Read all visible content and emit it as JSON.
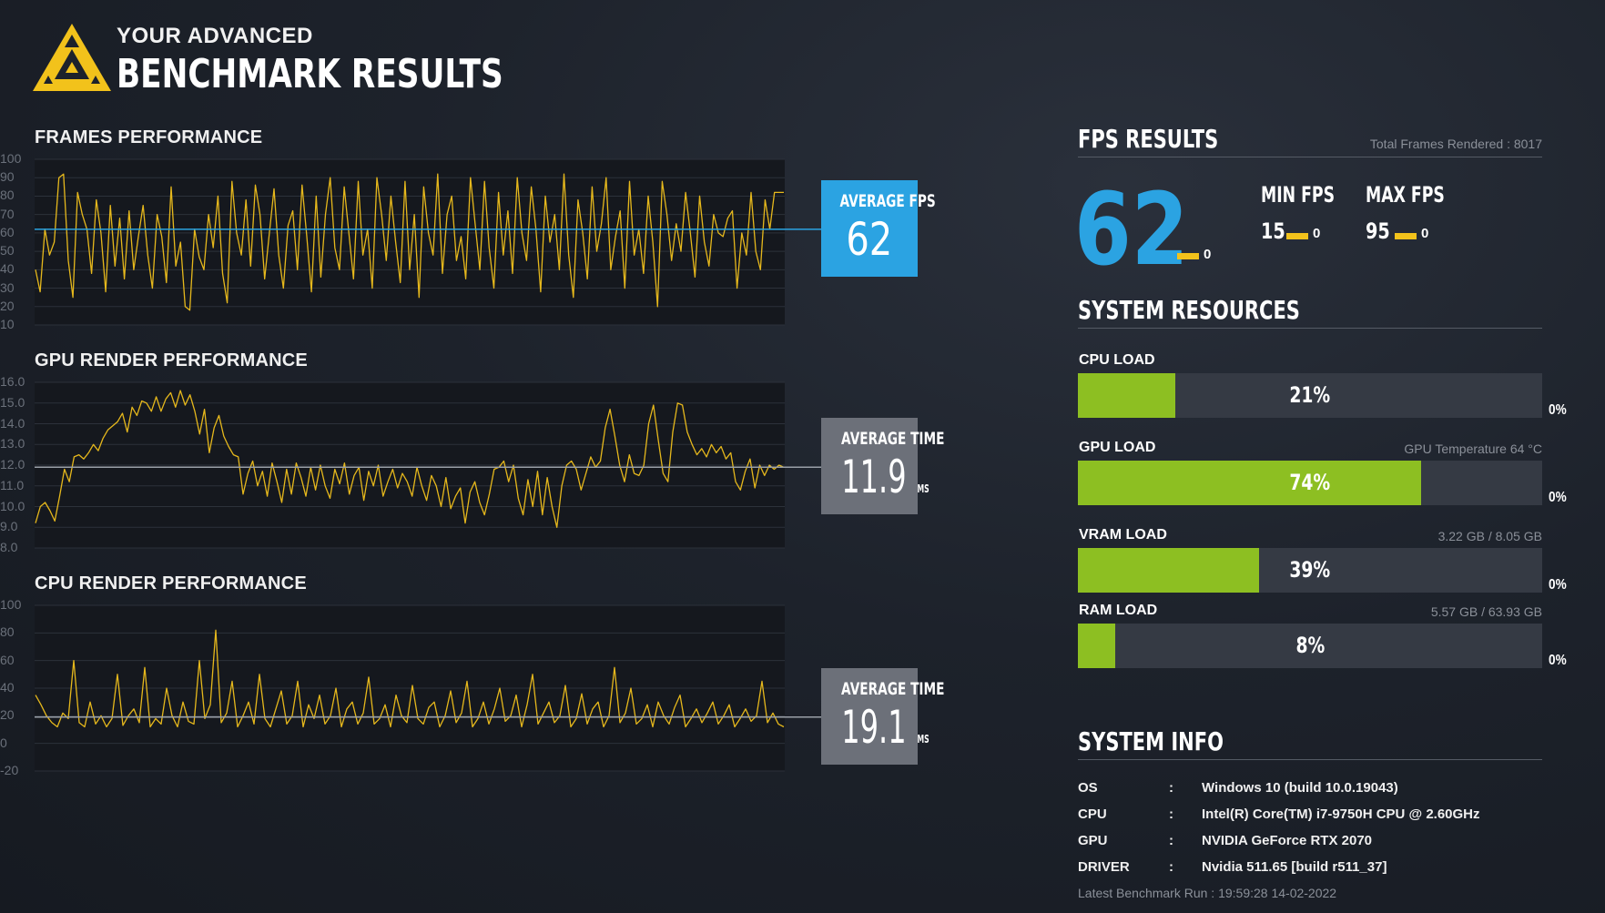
{
  "header": {
    "subtitle": "YOUR ADVANCED",
    "title": "BENCHMARK RESULTS",
    "logo_icon": "triangle-logo-icon",
    "accent_color": "#f2c21b"
  },
  "charts": {
    "frames": {
      "title": "FRAMES PERFORMANCE",
      "average_label": "AVERAGE FPS",
      "average_value": "62",
      "average_unit": "",
      "box_color": "#2ba3e2"
    },
    "gpu": {
      "title": "GPU RENDER PERFORMANCE",
      "average_label": "AVERAGE TIME",
      "average_value": "11.9",
      "average_unit": "MS",
      "box_color": "#6c7079"
    },
    "cpu": {
      "title": "CPU RENDER PERFORMANCE",
      "average_label": "AVERAGE TIME",
      "average_value": "19.1",
      "average_unit": "MS",
      "box_color": "#6c7079"
    }
  },
  "chart_data": [
    {
      "type": "line",
      "name": "frames",
      "title": "FRAMES PERFORMANCE",
      "y_ticks": [
        "100",
        "90",
        "80",
        "70",
        "60",
        "50",
        "40",
        "30",
        "20",
        "10"
      ],
      "ylim": [
        10,
        100
      ],
      "average": 62,
      "series_color": "#e6b81c",
      "average_line_color": "#2ba3e2",
      "values": [
        40,
        28,
        62,
        48,
        55,
        90,
        92,
        45,
        25,
        82,
        70,
        62,
        38,
        78,
        60,
        28,
        75,
        42,
        68,
        35,
        72,
        40,
        58,
        75,
        48,
        30,
        70,
        58,
        33,
        85,
        42,
        55,
        20,
        18,
        62,
        47,
        40,
        70,
        52,
        80,
        38,
        22,
        88,
        60,
        48,
        78,
        42,
        86,
        70,
        35,
        60,
        84,
        48,
        30,
        64,
        72,
        40,
        86,
        58,
        28,
        80,
        36,
        70,
        90,
        52,
        40,
        85,
        60,
        35,
        88,
        48,
        62,
        30,
        90,
        70,
        45,
        80,
        55,
        33,
        88,
        40,
        70,
        25,
        85,
        60,
        48,
        92,
        38,
        70,
        80,
        45,
        58,
        35,
        90,
        65,
        40,
        88,
        52,
        30,
        82,
        48,
        72,
        38,
        90,
        60,
        45,
        85,
        62,
        28,
        80,
        55,
        70,
        40,
        92,
        48,
        25,
        78,
        60,
        35,
        85,
        50,
        65,
        90,
        40,
        58,
        72,
        30,
        88,
        48,
        62,
        38,
        80,
        55,
        20,
        88,
        70,
        45,
        65,
        50,
        82,
        60,
        36,
        80,
        55,
        42,
        70,
        60,
        58,
        68,
        72,
        30,
        60,
        48,
        82,
        50,
        40,
        78,
        62,
        82,
        82,
        82
      ],
      "sample_count": 161
    },
    {
      "type": "line",
      "name": "gpu",
      "title": "GPU RENDER PERFORMANCE",
      "y_ticks": [
        "16.0",
        "15.0",
        "14.0",
        "13.0",
        "12.0",
        "11.0",
        "10.0",
        "9.0",
        "8.0"
      ],
      "ylim": [
        8,
        16
      ],
      "average": 11.9,
      "series_color": "#e6b81c",
      "average_line_color": "#9aa0a8",
      "values": [
        9.2,
        10.0,
        10.2,
        9.8,
        9.3,
        10.5,
        11.8,
        11.2,
        12.4,
        12.5,
        12.3,
        12.6,
        13.0,
        12.7,
        13.3,
        13.7,
        13.9,
        14.1,
        14.5,
        13.6,
        14.8,
        14.4,
        15.1,
        15.0,
        14.6,
        15.3,
        14.6,
        15.2,
        15.5,
        14.8,
        15.6,
        14.9,
        15.4,
        14.6,
        13.5,
        14.7,
        12.6,
        13.8,
        14.4,
        13.4,
        12.9,
        12.5,
        12.4,
        10.6,
        11.6,
        12.2,
        11.0,
        11.7,
        10.5,
        12.1,
        11.2,
        10.2,
        11.8,
        10.6,
        12.1,
        11.4,
        10.5,
        11.9,
        10.8,
        12.0,
        11.0,
        10.4,
        11.8,
        11.1,
        12.1,
        10.6,
        11.5,
        11.9,
        10.3,
        11.7,
        11.0,
        12.0,
        10.5,
        11.2,
        11.8,
        10.9,
        11.6,
        11.2,
        10.5,
        11.9,
        11.0,
        10.3,
        11.5,
        11.0,
        10.0,
        11.4,
        9.9,
        10.5,
        10.9,
        9.2,
        10.7,
        11.2,
        10.2,
        9.6,
        10.6,
        11.8,
        11.9,
        12.2,
        11.2,
        12.0,
        10.4,
        9.6,
        11.3,
        10.0,
        11.7,
        9.6,
        11.4,
        10.0,
        9.0,
        11.0,
        12.0,
        12.2,
        11.8,
        10.8,
        11.6,
        12.4,
        11.9,
        12.2,
        13.8,
        14.7,
        13.4,
        12.0,
        11.2,
        12.5,
        11.6,
        11.5,
        12.0,
        14.0,
        14.9,
        13.2,
        11.6,
        11.2,
        13.6,
        15.0,
        14.9,
        13.6,
        13.0,
        12.5,
        12.8,
        12.4,
        13.0,
        12.6,
        12.9,
        12.3,
        12.6,
        11.2,
        10.8,
        11.7,
        12.3,
        10.9,
        12.0,
        11.5,
        12.0,
        11.8,
        12.0,
        11.9
      ],
      "sample_count": 152
    },
    {
      "type": "line",
      "name": "cpu",
      "title": "CPU RENDER PERFORMANCE",
      "y_ticks": [
        "100",
        "80",
        "60",
        "40",
        "20",
        "0",
        "-20"
      ],
      "ylim": [
        -20,
        100
      ],
      "average": 19.1,
      "series_color": "#e6b81c",
      "average_line_color": "#9aa0a8",
      "values": [
        35,
        28,
        20,
        15,
        12,
        22,
        18,
        60,
        15,
        12,
        30,
        14,
        20,
        12,
        18,
        50,
        13,
        20,
        25,
        15,
        55,
        12,
        18,
        14,
        40,
        20,
        12,
        30,
        16,
        14,
        60,
        18,
        28,
        82,
        15,
        22,
        45,
        12,
        20,
        30,
        14,
        50,
        18,
        12,
        25,
        38,
        14,
        20,
        45,
        12,
        28,
        18,
        35,
        14,
        20,
        40,
        12,
        25,
        30,
        14,
        22,
        48,
        14,
        18,
        28,
        12,
        35,
        20,
        15,
        42,
        18,
        14,
        26,
        30,
        12,
        20,
        38,
        15,
        22,
        45,
        12,
        18,
        30,
        14,
        25,
        40,
        16,
        20,
        35,
        12,
        28,
        50,
        14,
        22,
        30,
        15,
        20,
        42,
        12,
        18,
        36,
        14,
        25,
        30,
        12,
        20,
        55,
        15,
        22,
        40,
        14,
        18,
        28,
        12,
        30,
        20,
        14,
        26,
        35,
        12,
        18,
        25,
        15,
        22,
        30,
        14,
        20,
        28,
        12,
        18,
        25,
        16,
        20,
        45,
        15,
        22,
        14,
        12
      ],
      "sample_count": 138
    }
  ],
  "fps_results": {
    "title": "FPS RESULTS",
    "total_frames": "Total Frames Rendered : 8017",
    "average_fps": "62",
    "average_change": "0",
    "min_label": "MIN FPS",
    "min_value": "15",
    "min_change": "0",
    "max_label": "MAX FPS",
    "max_value": "95",
    "max_change": "0",
    "accent_color": "#2ba3e2"
  },
  "system_resources": {
    "title": "SYSTEM RESOURCES",
    "bar_fill_color": "#8dbf22",
    "items": [
      {
        "label": "CPU LOAD",
        "detail": "",
        "percent": 21,
        "percent_text": "21%",
        "change": "0%"
      },
      {
        "label": "GPU LOAD",
        "detail": "GPU Temperature 64 °C",
        "percent": 74,
        "percent_text": "74%",
        "change": "0%"
      },
      {
        "label": "VRAM LOAD",
        "detail": "3.22 GB / 8.05 GB",
        "percent": 39,
        "percent_text": "39%",
        "change": "0%"
      },
      {
        "label": "RAM LOAD",
        "detail": "5.57 GB / 63.93 GB",
        "percent": 8,
        "percent_text": "8%",
        "change": "0%"
      }
    ]
  },
  "system_info": {
    "title": "SYSTEM INFO",
    "separator": ":",
    "rows": [
      {
        "key": "OS",
        "value": "Windows 10 (build 10.0.19043)"
      },
      {
        "key": "CPU",
        "value": "Intel(R) Core(TM) i7-9750H CPU @ 2.60GHz"
      },
      {
        "key": "GPU",
        "value": "NVIDIA GeForce RTX 2070"
      },
      {
        "key": "DRIVER",
        "value": "Nvidia 511.65 [build r511_37]"
      }
    ],
    "latest_run": "Latest Benchmark Run : 19:59:28 14-02-2022"
  }
}
